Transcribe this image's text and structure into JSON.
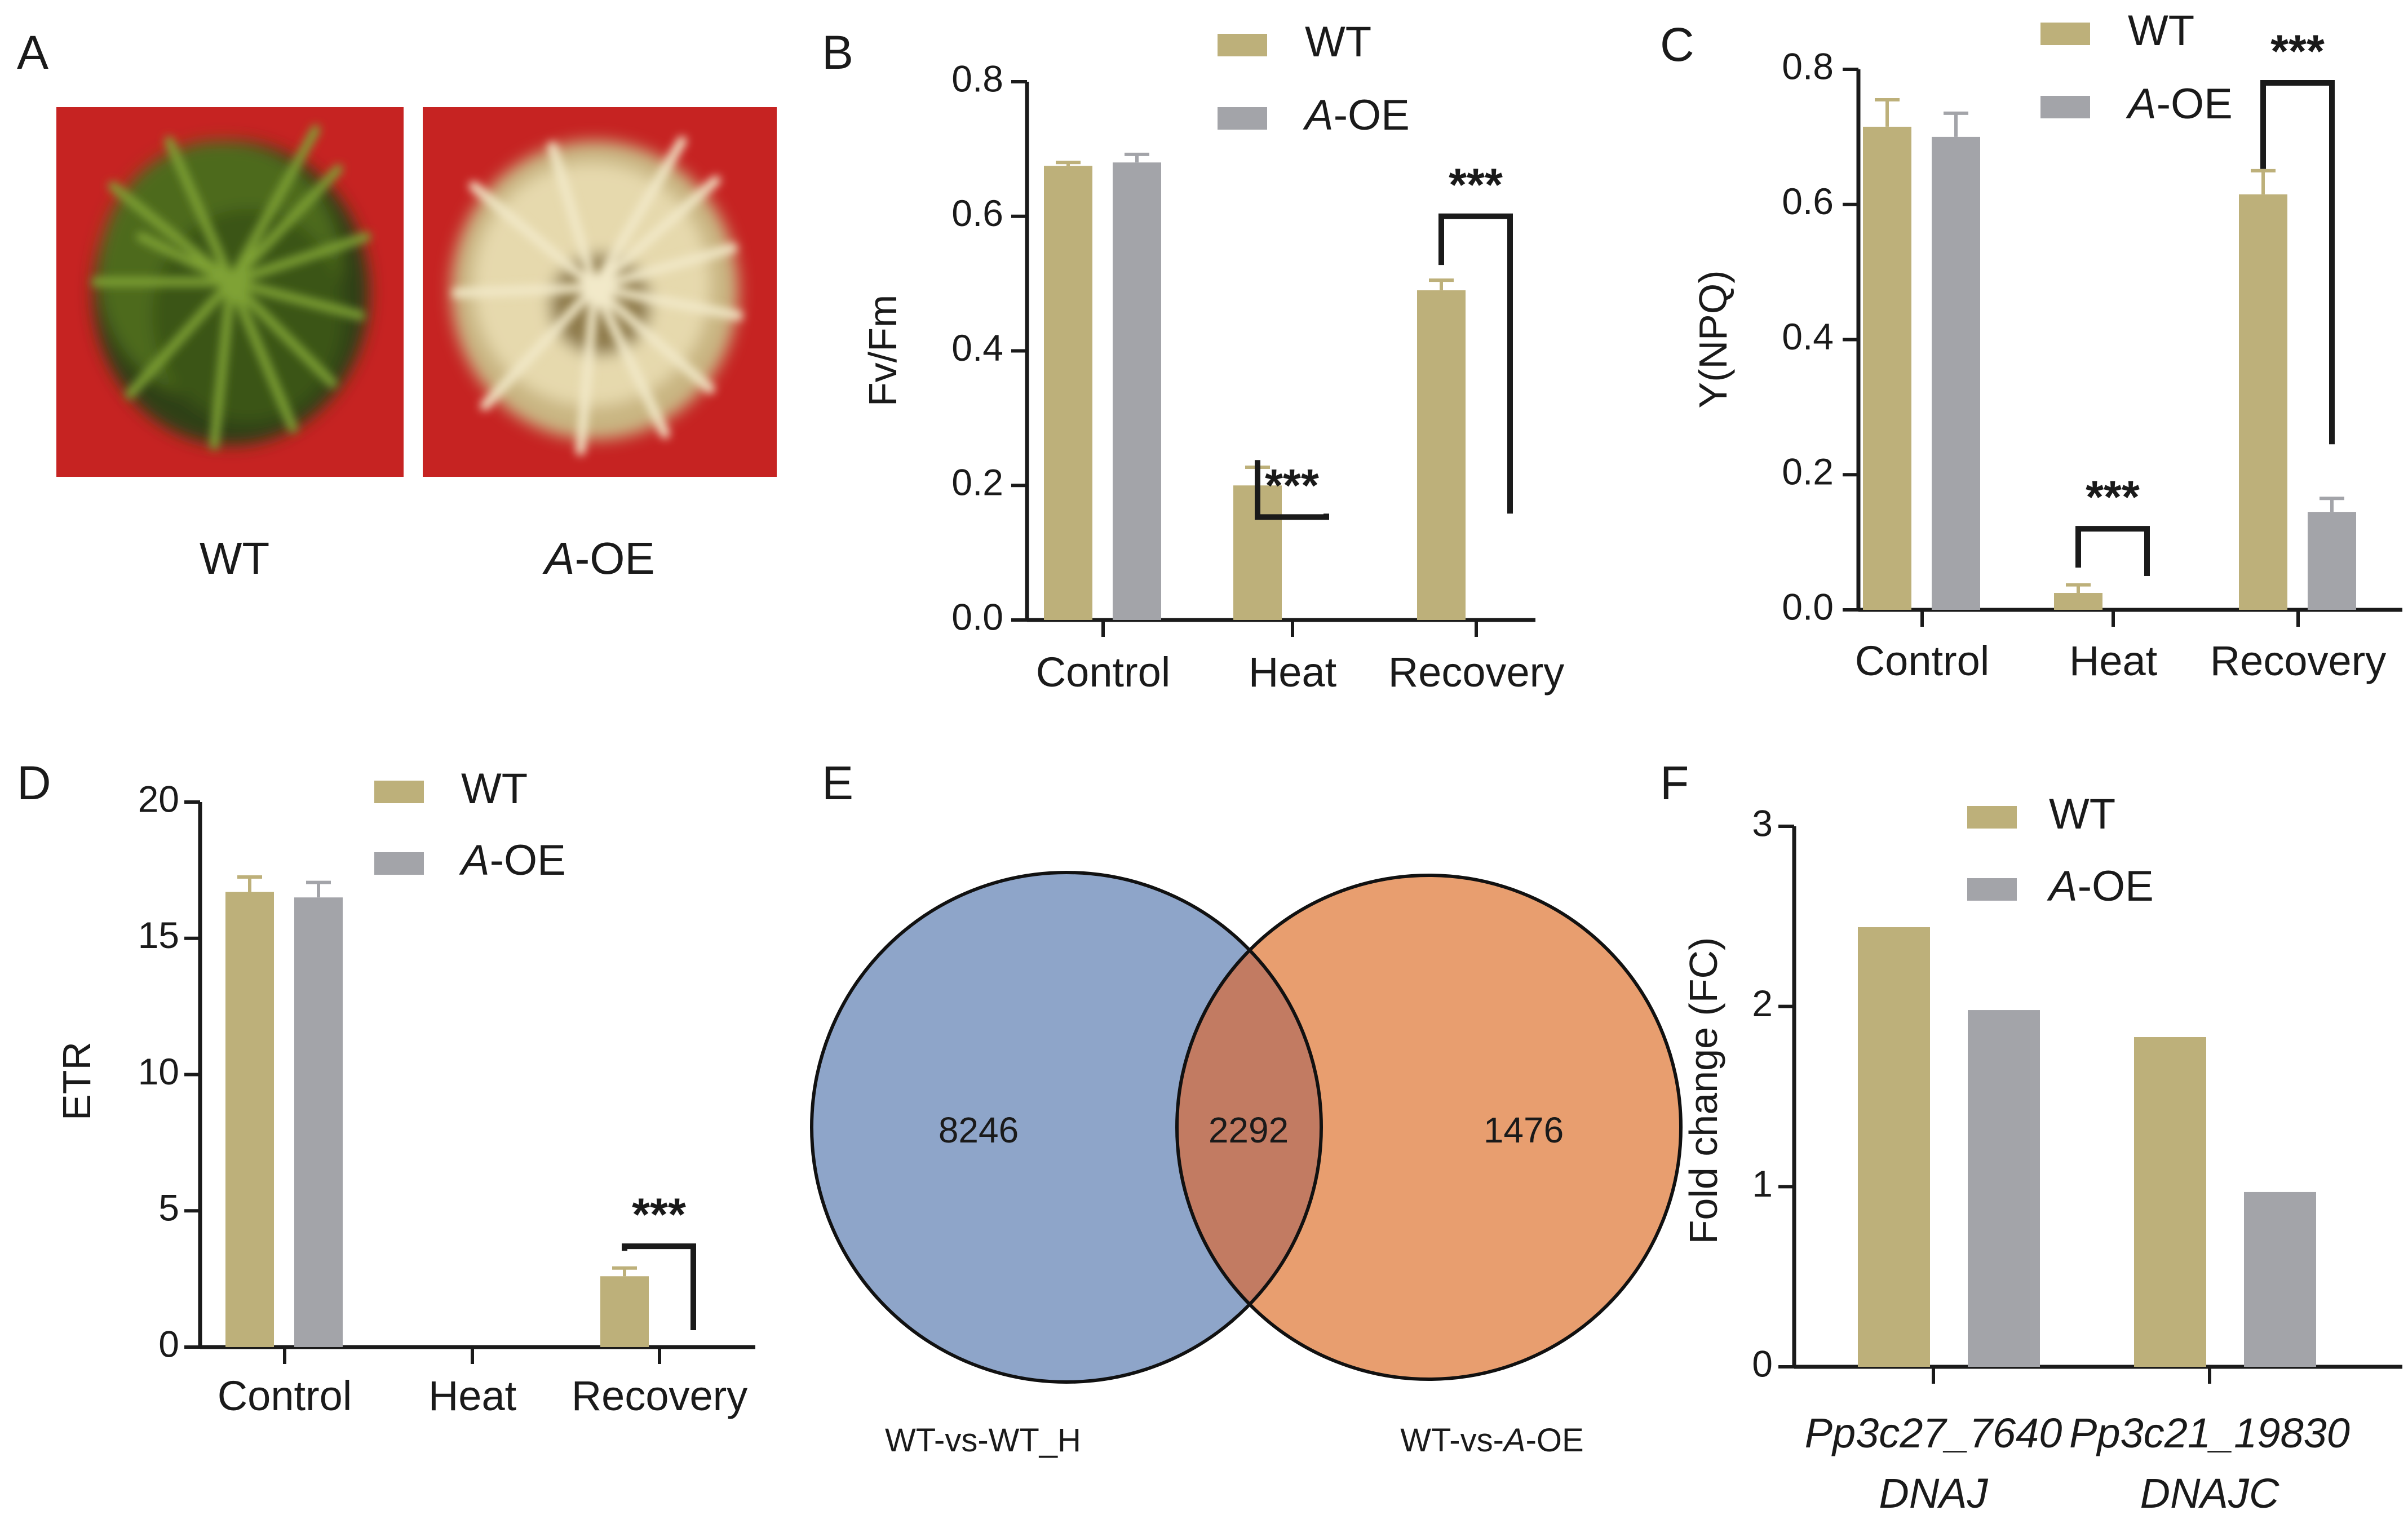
{
  "colors": {
    "wt": "#bdb07a",
    "aoe": "#a3a4a9",
    "venn_left": "#8ea5c9",
    "venn_right": "#e89e6f",
    "venn_overlap": "#c27b62",
    "photo_bg": "#c62322",
    "axis": "#1a1a1a"
  },
  "panel_a": {
    "letter": "A",
    "photos": [
      {
        "label": "WT",
        "description": "green moss colony"
      },
      {
        "label_italic": "A",
        "label_rest": "-OE",
        "description": "pale yellow moss colony"
      }
    ]
  },
  "chart_data": [
    {
      "panel": "B",
      "type": "bar",
      "ylabel": "Fv/Fm",
      "ylim": [
        0,
        0.8
      ],
      "yticks": [
        "0.0",
        "0.2",
        "0.4",
        "0.6",
        "0.8"
      ],
      "categories": [
        "Control",
        "Heat",
        "Recovery"
      ],
      "legend": [
        {
          "name": "WT"
        },
        {
          "name_italic": "A",
          "name_rest": "-OE"
        }
      ],
      "series": [
        {
          "name": "WT",
          "values": [
            0.675,
            0.2,
            0.49
          ],
          "errors": [
            0.005,
            0.027,
            0.015
          ]
        },
        {
          "name": "A-OE",
          "values": [
            0.68,
            0.0,
            0.0
          ],
          "errors": [
            0.012,
            0,
            0
          ]
        }
      ],
      "significance": [
        {
          "category": "Heat",
          "label": "***"
        },
        {
          "category": "Recovery",
          "label": "***"
        }
      ]
    },
    {
      "panel": "C",
      "type": "bar",
      "ylabel": "Y(NPQ)",
      "ylim": [
        0,
        0.8
      ],
      "yticks": [
        "0.0",
        "0.2",
        "0.4",
        "0.6",
        "0.8"
      ],
      "categories": [
        "Control",
        "Heat",
        "Recovery"
      ],
      "legend": [
        {
          "name": "WT"
        },
        {
          "name_italic": "A",
          "name_rest": "-OE"
        }
      ],
      "series": [
        {
          "name": "WT",
          "values": [
            0.715,
            0.025,
            0.615
          ],
          "errors": [
            0.04,
            0.012,
            0.035
          ]
        },
        {
          "name": "A-OE",
          "values": [
            0.7,
            0.0,
            0.145
          ],
          "errors": [
            0.035,
            0,
            0.02
          ]
        }
      ],
      "significance": [
        {
          "category": "Heat",
          "label": "***"
        },
        {
          "category": "Recovery",
          "label": "***"
        }
      ]
    },
    {
      "panel": "D",
      "type": "bar",
      "ylabel": "ETR",
      "ylim": [
        0,
        20
      ],
      "yticks": [
        "0",
        "5",
        "10",
        "15",
        "20"
      ],
      "categories": [
        "Control",
        "Heat",
        "Recovery"
      ],
      "legend": [
        {
          "name": "WT"
        },
        {
          "name_italic": "A",
          "name_rest": "-OE"
        }
      ],
      "series": [
        {
          "name": "WT",
          "values": [
            16.7,
            0,
            2.6
          ],
          "errors": [
            0.55,
            0,
            0.3
          ]
        },
        {
          "name": "A-OE",
          "values": [
            16.5,
            0,
            0
          ],
          "errors": [
            0.55,
            0,
            0
          ]
        }
      ],
      "significance": [
        {
          "category": "Recovery",
          "label": "***"
        }
      ]
    },
    {
      "panel": "F",
      "type": "bar",
      "ylabel": "Fold change (FC)",
      "ylim": [
        0,
        3
      ],
      "yticks": [
        "0",
        "1",
        "2",
        "3"
      ],
      "categories": [
        "Pp3c27_7640",
        "Pp3c21_19830"
      ],
      "subcategories": [
        "DNAJ",
        "DNAJC"
      ],
      "legend": [
        {
          "name": "WT"
        },
        {
          "name_italic": "A",
          "name_rest": "-OE"
        }
      ],
      "series": [
        {
          "name": "WT",
          "values": [
            2.44,
            1.83
          ]
        },
        {
          "name": "A-OE",
          "values": [
            1.98,
            0.97
          ]
        }
      ]
    }
  ],
  "venn": {
    "panel": "E",
    "left_only": "8246",
    "overlap": "2292",
    "right_only": "1476",
    "left_label": "WT-vs-WT_H",
    "right_label_pre": "WT-vs-",
    "right_label_italic": "A",
    "right_label_post": "-OE"
  }
}
